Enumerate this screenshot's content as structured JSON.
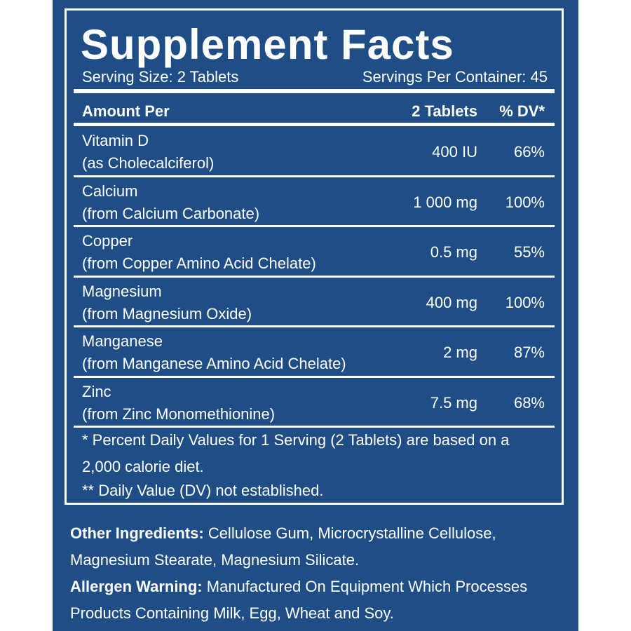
{
  "title": "Supplement Facts",
  "serving_size": "Serving Size: 2 Tablets",
  "servings_per_container": "Servings Per Container: 45",
  "table": {
    "header": [
      "Amount Per",
      "2 Tablets",
      "% DV*"
    ],
    "rows": [
      {
        "name": "Vitamin D",
        "source": "(as Cholecalciferol)",
        "amount": "400 IU",
        "dv": "66%"
      },
      {
        "name": "Calcium",
        "source": "(from Calcium Carbonate)",
        "amount": "1 000 mg",
        "dv": "100%"
      },
      {
        "name": "Copper",
        "source": "(from Copper Amino Acid Chelate)",
        "amount": "0.5 mg",
        "dv": "55%"
      },
      {
        "name": "Magnesium",
        "source": "(from Magnesium Oxide)",
        "amount": "400 mg",
        "dv": "100%"
      },
      {
        "name": "Manganese",
        "source": "(from Manganese Amino Acid Chelate)",
        "amount": "2 mg",
        "dv": "87%"
      },
      {
        "name": "Zinc",
        "source": "(from Zinc Monomethionine)",
        "amount": "7.5 mg",
        "dv": "68%"
      }
    ]
  },
  "footnotes": [
    "* Percent Daily Values for 1 Serving (2 Tablets) are based on a 2,000 calorie diet.",
    "** Daily Value (DV) not established."
  ],
  "other_ingredients": {
    "label": "Other Ingredients:",
    "text": "Cellulose Gum, Microcrystalline Cellulose, Magnesium Stearate, Magnesium Silicate."
  },
  "allergen_warning": {
    "label": "Allergen Warning:",
    "text": "Manufactured On Equipment Which Processes Products Containing Milk, Egg, Wheat and Soy."
  }
}
